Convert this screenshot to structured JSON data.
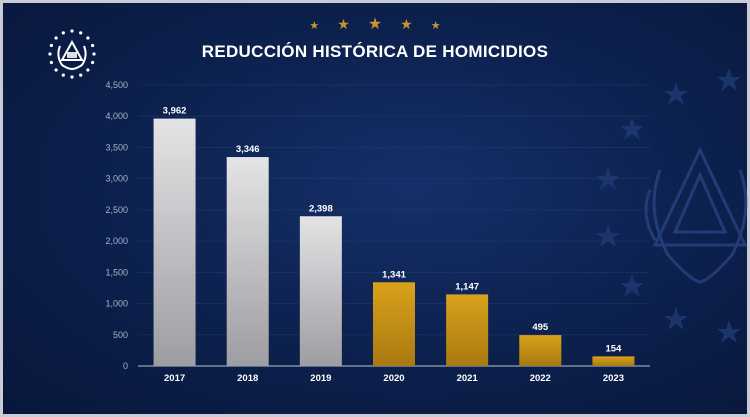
{
  "colors": {
    "background": "#0d2250",
    "silver_bar": "#c9c9cc",
    "gold_bar": "#c8941a",
    "star_gold": "#c8952a",
    "axis_text": "#a9b3c9"
  },
  "decor": {
    "seal_icon": "el-salvador-coat-of-arms-icon",
    "background_emblem_icon": "coat-of-arms-watermark-icon",
    "star_icon": "star-icon"
  },
  "chart_data": {
    "type": "bar",
    "title": "REDUCCIÓN HISTÓRICA DE HOMICIDIOS",
    "categories": [
      "2017",
      "2018",
      "2019",
      "2020",
      "2021",
      "2022",
      "2023"
    ],
    "values": [
      3962,
      3346,
      2398,
      1341,
      1147,
      495,
      154
    ],
    "value_labels": [
      "3,962",
      "3,346",
      "2,398",
      "1,341",
      "1,147",
      "495",
      "154"
    ],
    "bar_colors": [
      "#c9c9cc",
      "#c9c9cc",
      "#c9c9cc",
      "#c8941a",
      "#c8941a",
      "#c8941a",
      "#c8941a"
    ],
    "ylim": [
      0,
      4500
    ],
    "yticks": [
      0,
      500,
      1000,
      1500,
      2000,
      2500,
      3000,
      3500,
      4000,
      4500
    ],
    "ytick_labels": [
      "0",
      "500",
      "1,000",
      "1,500",
      "2,000",
      "2,500",
      "3,000",
      "3,500",
      "4,000",
      "4,500"
    ],
    "xlabel": "",
    "ylabel": "",
    "grid": true,
    "legend": "none"
  }
}
